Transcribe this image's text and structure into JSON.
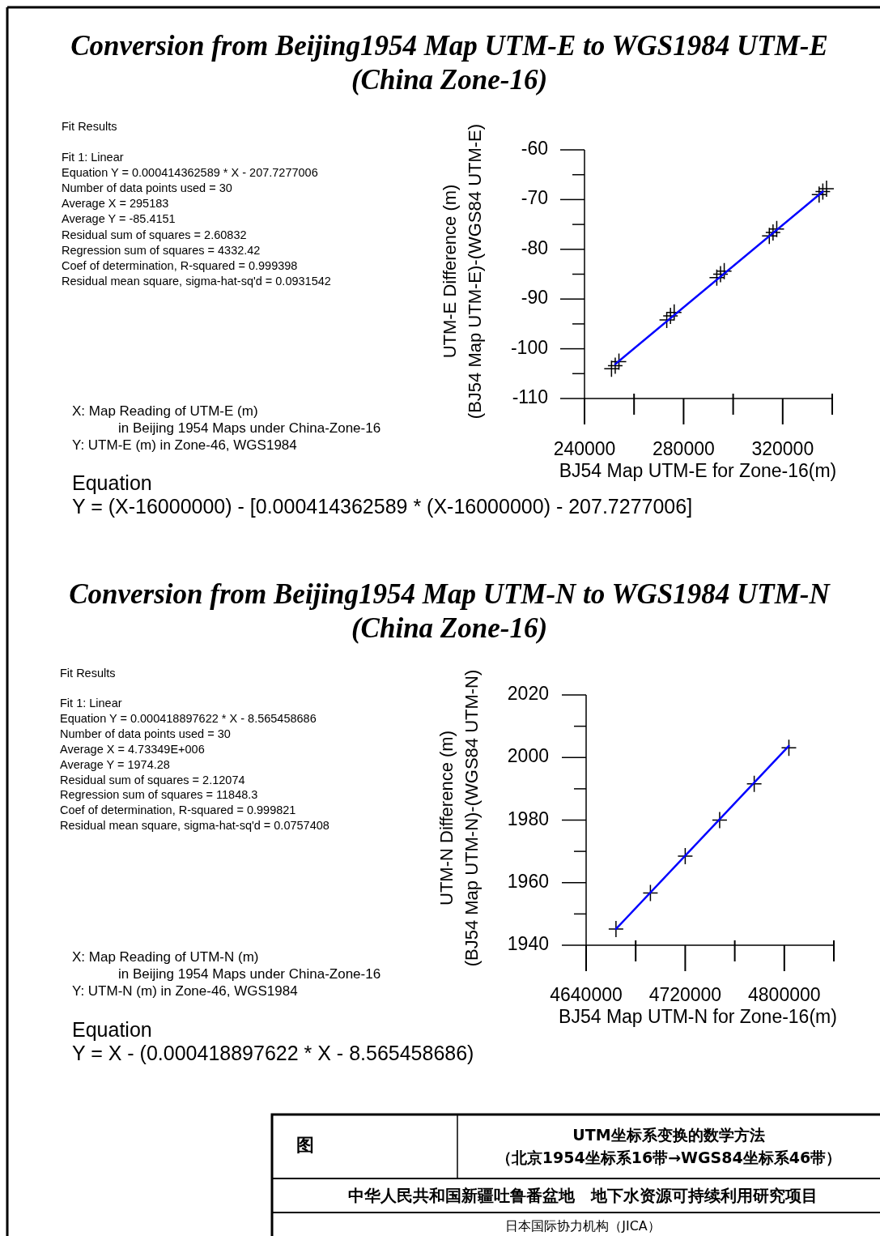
{
  "chart_data": [
    {
      "type": "scatter",
      "title": "Conversion from Beijing1954 Map UTM-E to WGS1984 UTM-E\n(China Zone-16)",
      "xlabel": "BJ54 Map UTM-E for Zone-16(m)",
      "ylabel": "UTM-E Difference (m)\n(BJ54 Map UTM-E)-(WGS84 UTM-E)",
      "xlim": [
        240000,
        340000
      ],
      "xticks": [
        240000,
        {
          "value": 260000,
          "label": null
        },
        280000,
        {
          "value": 300000,
          "label": null
        },
        320000,
        {
          "value": 340000,
          "label": null
        }
      ],
      "ylim": [
        -110,
        -60
      ],
      "yticks": [
        -110,
        {
          "value": -105,
          "label": null
        },
        -100,
        {
          "value": -95,
          "label": null
        },
        -90,
        {
          "value": -85,
          "label": null
        },
        -80,
        {
          "value": -75,
          "label": null
        },
        -70,
        {
          "value": -65,
          "label": null
        },
        -60
      ],
      "series": [
        {
          "type": "scatter",
          "marker": "cross",
          "color": "#000000",
          "x": [
            250900,
            252400,
            253900,
            273200,
            274700,
            276200,
            293400,
            294900,
            296400,
            314600,
            316100,
            317600,
            334700,
            336200,
            337700
          ],
          "values": [
            -104.0,
            -103.4,
            -102.6,
            -94.2,
            -93.4,
            -92.7,
            -85.7,
            -85.0,
            -84.4,
            -77.3,
            -76.6,
            -75.9,
            -69.0,
            -68.4,
            -67.8
          ]
        },
        {
          "type": "line",
          "color": "#0000ff",
          "x": [
            252400,
            336200
          ],
          "values": [
            -103.1,
            -68.4
          ]
        }
      ],
      "annotations": [
        "Fit Results",
        "Fit 1: Linear\nEquation Y = 0.000414362589 * X - 207.7277006\nNumber of data points used = 30\nAverage X = 295183\nAverage Y = -85.4151\nResidual sum of squares = 2.60832\nRegression sum of squares = 4332.42\nCoef of determination, R-squared = 0.999398\nResidual mean square, sigma-hat-sq'd = 0.0931542",
        "X: Map Reading of UTM-E (m)\nin Beijing 1954 Maps under China-Zone-16\nY: UTM-E (m) in Zone-46, WGS1984",
        "Equation\nY = (X-16000000) - [0.000414362589 * (X-16000000) - 207.7277006]"
      ]
    },
    {
      "type": "scatter",
      "title": "Conversion from Beijing1954 Map UTM-N to WGS1984 UTM-N\n(China Zone-16)",
      "xlabel": "BJ54 Map UTM-N for Zone-16(m)",
      "ylabel": "UTM-N Difference (m)\n(BJ54 Map UTM-N)-(WGS84 UTM-N)",
      "xlim": [
        4640000,
        4840000
      ],
      "xticks": [
        4640000,
        {
          "value": 4680000,
          "label": null
        },
        4720000,
        {
          "value": 4760000,
          "label": null
        },
        4800000,
        {
          "value": 4840000,
          "label": null
        }
      ],
      "ylim": [
        1940,
        2020
      ],
      "yticks": [
        1940,
        {
          "value": 1950,
          "label": null
        },
        1960,
        {
          "value": 1970,
          "label": null
        },
        1980,
        {
          "value": 1990,
          "label": null
        },
        2000,
        {
          "value": 2010,
          "label": null
        },
        2020
      ],
      "series": [
        {
          "type": "scatter",
          "marker": "cross",
          "color": "#000000",
          "x": [
            4664100,
            4691900,
            4720000,
            4747800,
            4775700,
            4803700
          ],
          "values": [
            1945.2,
            1956.7,
            1968.5,
            1980.0,
            1991.6,
            2003.1
          ]
        },
        {
          "type": "line",
          "color": "#0000ff",
          "x": [
            4664100,
            4803700
          ],
          "values": [
            1945.2,
            2003.7
          ]
        }
      ],
      "annotations": [
        "Fit Results",
        "Fit 1: Linear\nEquation Y = 0.000418897622 * X - 8.565458686\nNumber of data points used = 30\nAverage X = 4.73349E+006\nAverage Y = 1974.28\nResidual sum of squares = 2.12074\nRegression sum of squares = 11848.3\nCoef of determination, R-squared = 0.999821\nResidual mean square, sigma-hat-sq'd = 0.0757408",
        "X: Map Reading of UTM-N (m)\nin Beijing 1954 Maps under China-Zone-16\nY: UTM-N (m) in Zone-46, WGS1984",
        "Equation\nY = X - (0.000418897622 * X - 8.565458686)"
      ]
    },
    {
      "type": "other",
      "annotations": [
        "图",
        "UTM坐标系变换的数学方法",
        "（北京1954坐标系16带→WGS84坐标系46带）",
        "中华人民共和国新疆吐鲁番盆地　地下水资源可持续利用研究项目",
        "日本国际协力机构（JICA）"
      ]
    }
  ]
}
